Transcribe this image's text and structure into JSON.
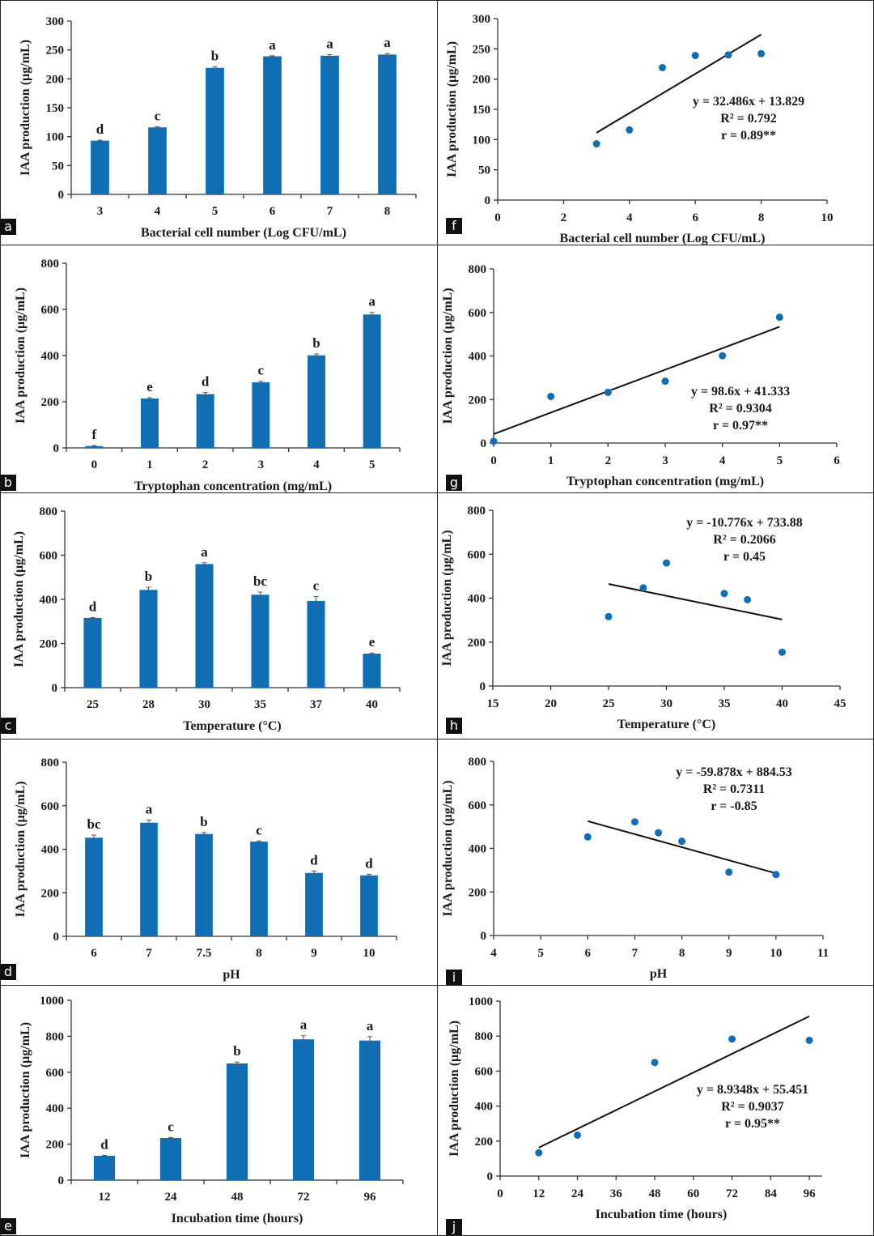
{
  "chart_data": [
    {
      "id": "a",
      "type": "bar",
      "categories": [
        "3",
        "4",
        "5",
        "6",
        "7",
        "8"
      ],
      "values": [
        93,
        116,
        219,
        239,
        240,
        242
      ],
      "errors": [
        1,
        1,
        2,
        1,
        2,
        2
      ],
      "letters": [
        "d",
        "c",
        "b",
        "a",
        "a",
        "a"
      ],
      "xlabel": "Bacterial cell number (Log CFU/mL)",
      "ylabel": "IAA production (µg/mL)",
      "ylim": [
        0,
        300
      ],
      "yticks": [
        0,
        50,
        100,
        150,
        200,
        250,
        300
      ],
      "color": "#0f6eb4"
    },
    {
      "id": "b",
      "type": "bar",
      "categories": [
        "0",
        "1",
        "2",
        "3",
        "4",
        "5"
      ],
      "values": [
        8,
        214,
        233,
        284,
        401,
        578
      ],
      "errors": [
        2,
        4,
        7,
        5,
        6,
        9
      ],
      "letters": [
        "f",
        "e",
        "d",
        "c",
        "b",
        "a"
      ],
      "xlabel": "Tryptophan concentration (mg/mL)",
      "ylabel": "IAA production (µg/mL)",
      "ylim": [
        0,
        800
      ],
      "yticks": [
        0,
        200,
        400,
        600,
        800
      ],
      "color": "#0f6eb4"
    },
    {
      "id": "c",
      "type": "bar",
      "categories": [
        "25",
        "28",
        "30",
        "35",
        "37",
        "40"
      ],
      "values": [
        316,
        443,
        560,
        421,
        393,
        154
      ],
      "errors": [
        2,
        12,
        6,
        12,
        20,
        3
      ],
      "letters": [
        "d",
        "b",
        "a",
        "bc",
        "c",
        "e"
      ],
      "xlabel": "Temperature (°C)",
      "ylabel": "IAA production (µg/mL)",
      "ylim": [
        0,
        800
      ],
      "yticks": [
        0,
        200,
        400,
        600,
        800
      ],
      "color": "#0f6eb4"
    },
    {
      "id": "d",
      "type": "bar",
      "categories": [
        "6",
        "7",
        "7.5",
        "8",
        "9",
        "10"
      ],
      "values": [
        453,
        522,
        470,
        435,
        291,
        280
      ],
      "errors": [
        12,
        12,
        7,
        3,
        9,
        5
      ],
      "letters": [
        "bc",
        "a",
        "b",
        "c",
        "d",
        "d"
      ],
      "xlabel": "pH",
      "ylabel": "IAA production (µg/mL)",
      "ylim": [
        0,
        800
      ],
      "yticks": [
        0,
        200,
        400,
        600,
        800
      ],
      "color": "#0f6eb4"
    },
    {
      "id": "e",
      "type": "bar",
      "categories": [
        "12",
        "24",
        "48",
        "72",
        "96"
      ],
      "values": [
        135,
        234,
        649,
        783,
        776
      ],
      "errors": [
        2,
        3,
        8,
        20,
        22
      ],
      "letters": [
        "d",
        "c",
        "b",
        "a",
        "a"
      ],
      "xlabel": "Incubation time (hours)",
      "ylabel": "IAA production (µg/mL)",
      "ylim": [
        0,
        1000
      ],
      "yticks": [
        0,
        200,
        400,
        600,
        800,
        1000
      ],
      "color": "#0f6eb4"
    },
    {
      "id": "f",
      "type": "scatter",
      "x": [
        3,
        4,
        5,
        6,
        7,
        8
      ],
      "y": [
        93,
        116,
        219,
        239,
        240,
        242
      ],
      "trend": {
        "slope": 32.486,
        "intercept": 13.829,
        "x_range": [
          3,
          8
        ]
      },
      "annotation": [
        "y = 32.486x + 13.829",
        "R² = 0.792",
        "r = 0.89**"
      ],
      "xlabel": "Bacterial cell number (Log CFU/mL)",
      "ylabel": "IAA production (µg/mL)",
      "xlim": [
        0,
        10
      ],
      "xticks": [
        0,
        2,
        4,
        6,
        8,
        10
      ],
      "ylim": [
        0,
        300
      ],
      "yticks": [
        0,
        50,
        100,
        150,
        200,
        250,
        300
      ],
      "color": "#0f6eb4"
    },
    {
      "id": "g",
      "type": "scatter",
      "x": [
        0,
        1,
        2,
        3,
        4,
        5
      ],
      "y": [
        8,
        214,
        233,
        284,
        401,
        578
      ],
      "trend": {
        "slope": 98.6,
        "intercept": 41.333,
        "x_range": [
          0,
          5
        ]
      },
      "annotation": [
        "y = 98.6x + 41.333",
        "R² = 0.9304",
        "r = 0.97**"
      ],
      "xlabel": "Tryptophan concentration (mg/mL)",
      "ylabel": "IAA production (µg/mL)",
      "xlim": [
        0,
        6
      ],
      "xticks": [
        0,
        1,
        2,
        3,
        4,
        5,
        6
      ],
      "ylim": [
        0,
        800
      ],
      "yticks": [
        0,
        200,
        400,
        600,
        800
      ],
      "color": "#0f6eb4"
    },
    {
      "id": "h",
      "type": "scatter",
      "x": [
        25,
        28,
        30,
        35,
        37,
        40
      ],
      "y": [
        316,
        447,
        560,
        421,
        393,
        154
      ],
      "trend": {
        "slope": -10.776,
        "intercept": 733.88,
        "x_range": [
          25,
          40
        ]
      },
      "annotation": [
        "y = -10.776x + 733.88",
        "R² = 0.2066",
        "r = 0.45"
      ],
      "xlabel": "Temperature (°C)",
      "ylabel": "IAA production (µg/mL)",
      "xlim": [
        15,
        45
      ],
      "xticks": [
        15,
        20,
        25,
        30,
        35,
        40,
        45
      ],
      "ylim": [
        0,
        800
      ],
      "yticks": [
        0,
        200,
        400,
        600,
        800
      ],
      "color": "#0f6eb4"
    },
    {
      "id": "i",
      "type": "scatter",
      "x": [
        6,
        7,
        7.5,
        8,
        9,
        10
      ],
      "y": [
        453,
        522,
        472,
        433,
        291,
        280
      ],
      "trend": {
        "slope": -59.878,
        "intercept": 884.53,
        "x_range": [
          6,
          10
        ]
      },
      "annotation": [
        "y = -59.878x + 884.53",
        "R² = 0.7311",
        "r = -0.85"
      ],
      "xlabel": "pH",
      "ylabel": "IAA production (µg/mL)",
      "xlim": [
        4,
        11
      ],
      "xticks": [
        4,
        5,
        6,
        7,
        8,
        9,
        10,
        11
      ],
      "ylim": [
        0,
        800
      ],
      "yticks": [
        0,
        200,
        400,
        600,
        800
      ],
      "color": "#0f6eb4"
    },
    {
      "id": "j",
      "type": "scatter",
      "x": [
        12,
        24,
        48,
        72,
        96
      ],
      "y": [
        133,
        234,
        649,
        783,
        776
      ],
      "trend": {
        "slope": 8.9348,
        "intercept": 55.451,
        "x_range": [
          12,
          96
        ]
      },
      "annotation": [
        "y = 8.9348x + 55.451",
        "R² = 0.9037",
        "r = 0.95**"
      ],
      "xlabel": "Incubation time (hours)",
      "ylabel": "IAA production (µg/mL)",
      "xlim": [
        0,
        100
      ],
      "xticks": [
        0,
        12,
        24,
        36,
        48,
        60,
        72,
        84,
        96
      ],
      "ylim": [
        0,
        1000
      ],
      "yticks": [
        0,
        200,
        400,
        600,
        800,
        1000
      ],
      "color": "#0f6eb4"
    }
  ],
  "panel_labels": [
    "a",
    "b",
    "c",
    "d",
    "e",
    "f",
    "g",
    "h",
    "i",
    "j"
  ]
}
